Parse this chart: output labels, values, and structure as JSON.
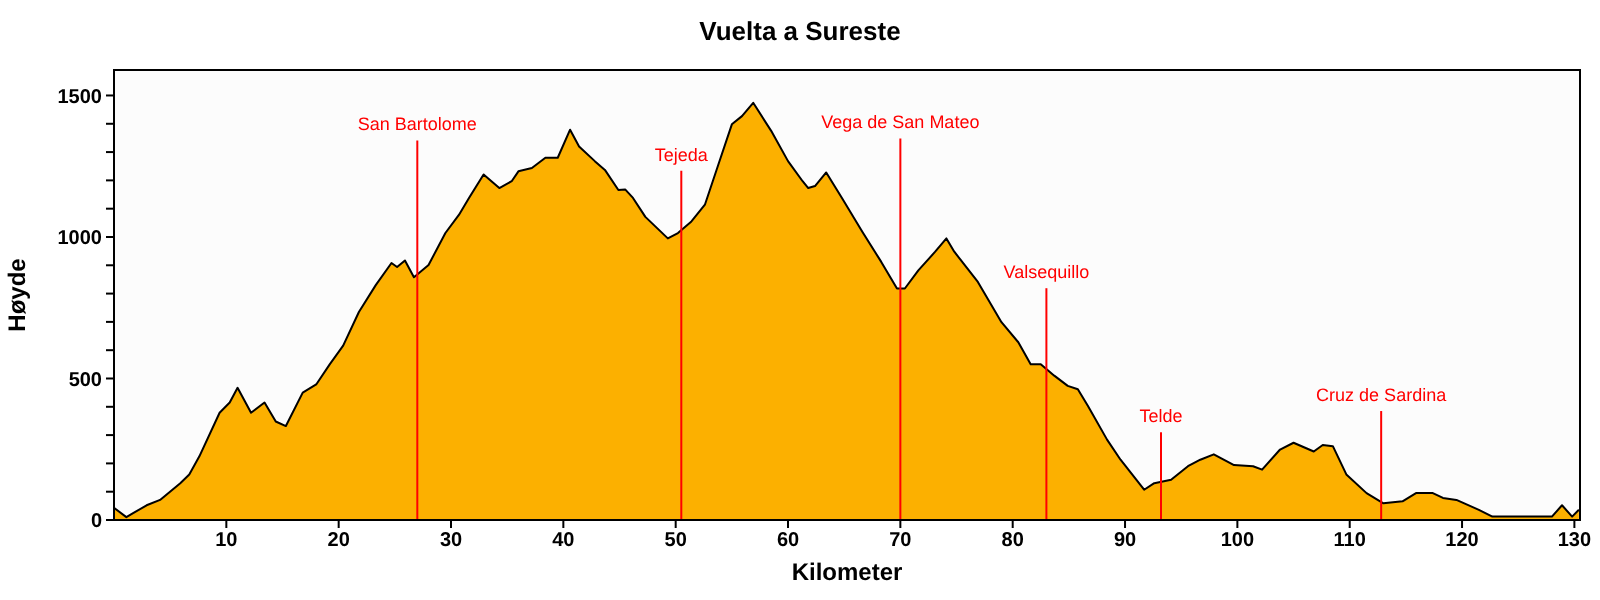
{
  "chart_data": {
    "type": "area",
    "title": "Vuelta a Sureste",
    "xlabel": "Kilometer",
    "ylabel": "Høyde",
    "x": [
      0,
      1.1,
      1.7,
      2.9,
      4.1,
      5.9,
      6.7,
      7.6,
      9.4,
      10.3,
      11,
      12.2,
      13.4,
      14.4,
      15.3,
      16.8,
      18,
      19.2,
      20.4,
      21.8,
      23.3,
      24.7,
      25.2,
      25.9,
      26.7,
      28,
      29.5,
      30.7,
      31.6,
      32.9,
      34.3,
      35.4,
      36,
      37.2,
      38.4,
      39.5,
      40.6,
      41.4,
      42.8,
      43.7,
      44.9,
      45.5,
      46.2,
      47.3,
      49.3,
      50.2,
      51.4,
      52.6,
      53.8,
      55,
      55.9,
      56.9,
      58.5,
      60,
      61.3,
      61.8,
      62.4,
      63.4,
      64.8,
      66.6,
      68.3,
      69.7,
      70.4,
      71.6,
      73.1,
      74.1,
      74.8,
      76.9,
      79,
      80.5,
      81.6,
      82.5,
      83.7,
      84.9,
      85.8,
      86.7,
      88.4,
      89.6,
      91.7,
      92.6,
      94.1,
      95.6,
      96.7,
      97.9,
      99.7,
      101.4,
      102.2,
      103.8,
      105,
      106.8,
      107.6,
      108.5,
      109.7,
      111.5,
      113,
      114.7,
      115.9,
      117.4,
      118.3,
      119.5,
      121.5,
      122.7,
      126.3,
      128,
      128.9,
      129.8,
      130.4
    ],
    "series": [
      {
        "color": "#fcb000",
        "values": [
          43,
          10,
          24,
          52,
          71,
          130,
          161,
          225,
          379,
          415,
          467,
          379,
          415,
          348,
          332,
          450,
          479,
          550,
          616,
          735,
          830,
          908,
          894,
          917,
          858,
          901,
          1014,
          1078,
          1138,
          1221,
          1173,
          1197,
          1232,
          1244,
          1280,
          1280,
          1379,
          1320,
          1268,
          1237,
          1166,
          1168,
          1138,
          1071,
          995,
          1014,
          1055,
          1114,
          1256,
          1398,
          1427,
          1474,
          1375,
          1268,
          1197,
          1173,
          1180,
          1228,
          1138,
          1019,
          912,
          818,
          818,
          882,
          948,
          995,
          948,
          841,
          699,
          628,
          550,
          550,
          510,
          474,
          462,
          403,
          284,
          213,
          107,
          130,
          142,
          190,
          213,
          232,
          194,
          190,
          178,
          249,
          273,
          242,
          265,
          261,
          161,
          95,
          59,
          66,
          95,
          95,
          78,
          71,
          36,
          12,
          12,
          12,
          52,
          12,
          36
        ]
      }
    ],
    "xlim": [
      0,
      130.5
    ],
    "xticks": [
      10,
      20,
      30,
      40,
      50,
      60,
      70,
      80,
      90,
      100,
      110,
      120,
      130
    ],
    "ylim": [
      0,
      1590
    ],
    "yticks": [
      0,
      {
        "value": 100,
        "label": null
      },
      {
        "value": 200,
        "label": null
      },
      {
        "value": 300,
        "label": null
      },
      {
        "value": 400,
        "label": null
      },
      500,
      {
        "value": 600,
        "label": null
      },
      {
        "value": 700,
        "label": null
      },
      {
        "value": 800,
        "label": null
      },
      {
        "value": 900,
        "label": null
      },
      1000,
      {
        "value": 1100,
        "label": null
      },
      {
        "value": 1200,
        "label": null
      },
      {
        "value": 1300,
        "label": null
      },
      {
        "value": 1400,
        "label": null
      },
      1500
    ],
    "ref_lines": [
      {
        "axis": "x",
        "value": 27,
        "label": "San Bartolome",
        "color": "#ff0000"
      },
      {
        "axis": "x",
        "value": 50.5,
        "label": "Tejeda",
        "color": "#ff0000"
      },
      {
        "axis": "x",
        "value": 70,
        "label": "Vega de San Mateo",
        "color": "#ff0000"
      },
      {
        "axis": "x",
        "value": 83,
        "label": "Valsequillo",
        "color": "#ff0000"
      },
      {
        "axis": "x",
        "value": 93.2,
        "label": "Telde",
        "color": "#ff0000"
      },
      {
        "axis": "x",
        "value": 112.8,
        "label": "Cruz de Sardina",
        "color": "#ff0000"
      }
    ],
    "legend": false
  }
}
